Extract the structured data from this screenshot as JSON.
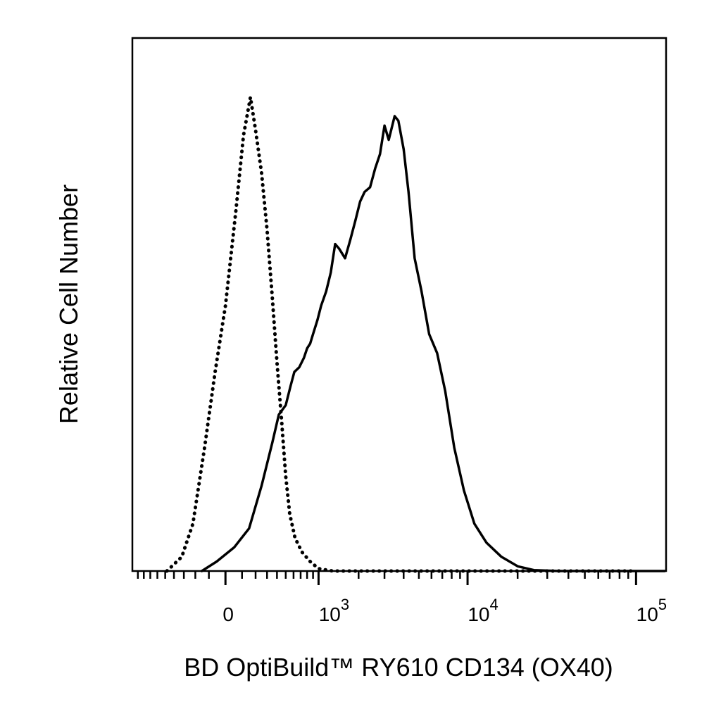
{
  "chart_data": {
    "type": "line",
    "title": "",
    "xlabel": "BD OptiBuild™ RY610 CD134 (OX40)",
    "ylabel": "Relative Cell Number",
    "x_scale": "biexponential",
    "xlim": [
      -1000,
      150000
    ],
    "ylim": [
      0,
      1
    ],
    "grid": false,
    "legend": "none",
    "x_ticks": [
      {
        "value": 0,
        "label": "0"
      },
      {
        "value": 1000,
        "base": "10",
        "exp": "3"
      },
      {
        "value": 10000,
        "base": "10",
        "exp": "4"
      },
      {
        "value": 100000,
        "base": "10",
        "exp": "5"
      }
    ],
    "series": [
      {
        "style": "dotted",
        "points": [
          [
            -480,
            0.0
          ],
          [
            -320,
            0.03
          ],
          [
            -220,
            0.1
          ],
          [
            -130,
            0.26
          ],
          [
            -60,
            0.42
          ],
          [
            0,
            0.56
          ],
          [
            60,
            0.76
          ],
          [
            110,
            0.92
          ],
          [
            160,
            1.0
          ],
          [
            200,
            0.93
          ],
          [
            250,
            0.84
          ],
          [
            300,
            0.72
          ],
          [
            350,
            0.58
          ],
          [
            400,
            0.44
          ],
          [
            450,
            0.32
          ],
          [
            500,
            0.2
          ],
          [
            550,
            0.12
          ],
          [
            620,
            0.07
          ],
          [
            720,
            0.04
          ],
          [
            850,
            0.02
          ],
          [
            1000,
            0.005
          ],
          [
            1300,
            0.0
          ],
          [
            100000,
            0.0
          ]
        ]
      },
      {
        "style": "solid",
        "points": [
          [
            -150,
            0.0
          ],
          [
            -50,
            0.02
          ],
          [
            50,
            0.05
          ],
          [
            150,
            0.09
          ],
          [
            250,
            0.18
          ],
          [
            350,
            0.27
          ],
          [
            420,
            0.33
          ],
          [
            500,
            0.35
          ],
          [
            560,
            0.39
          ],
          [
            610,
            0.42
          ],
          [
            680,
            0.43
          ],
          [
            750,
            0.45
          ],
          [
            800,
            0.47
          ],
          [
            850,
            0.48
          ],
          [
            900,
            0.5
          ],
          [
            980,
            0.53
          ],
          [
            1050,
            0.56
          ],
          [
            1150,
            0.59
          ],
          [
            1250,
            0.63
          ],
          [
            1350,
            0.69
          ],
          [
            1450,
            0.68
          ],
          [
            1600,
            0.66
          ],
          [
            1750,
            0.7
          ],
          [
            1900,
            0.74
          ],
          [
            2050,
            0.78
          ],
          [
            2200,
            0.8
          ],
          [
            2400,
            0.81
          ],
          [
            2600,
            0.85
          ],
          [
            2800,
            0.88
          ],
          [
            3000,
            0.94
          ],
          [
            3200,
            0.91
          ],
          [
            3500,
            0.96
          ],
          [
            3700,
            0.95
          ],
          [
            4000,
            0.89
          ],
          [
            4300,
            0.8
          ],
          [
            4700,
            0.66
          ],
          [
            5200,
            0.59
          ],
          [
            5800,
            0.5
          ],
          [
            6500,
            0.46
          ],
          [
            7300,
            0.38
          ],
          [
            8300,
            0.26
          ],
          [
            9500,
            0.17
          ],
          [
            11000,
            0.1
          ],
          [
            13000,
            0.06
          ],
          [
            16000,
            0.03
          ],
          [
            20000,
            0.01
          ],
          [
            25000,
            0.002
          ],
          [
            35000,
            0.0
          ],
          [
            150000,
            0.0
          ]
        ]
      }
    ]
  }
}
